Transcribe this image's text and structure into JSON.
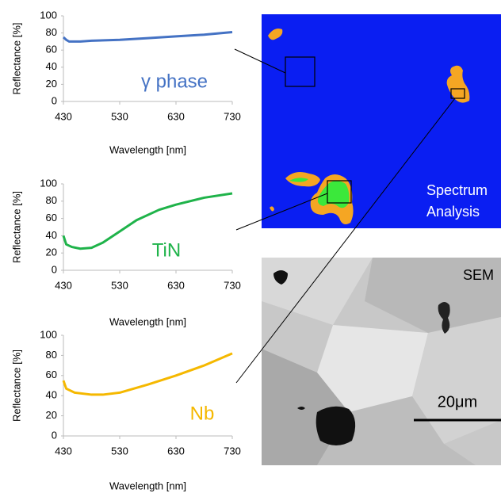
{
  "chart_data": [
    {
      "type": "line",
      "x_label": "Wavelength [nm]",
      "y_label": "Reflectance [%]",
      "x": [
        430,
        435,
        440,
        460,
        480,
        530,
        580,
        630,
        680,
        730
      ],
      "series": [
        {
          "name": "γ phase",
          "color": "#4472c4",
          "values": [
            75,
            72,
            70,
            70,
            71,
            72,
            74,
            76,
            78,
            81
          ]
        }
      ],
      "xlim": [
        430,
        730
      ],
      "xticks": [
        430,
        530,
        630,
        730
      ],
      "ylim": [
        0,
        100
      ],
      "yticks": [
        0,
        20,
        40,
        60,
        80,
        100
      ]
    },
    {
      "type": "line",
      "x_label": "Wavelength [nm]",
      "y_label": "Reflectance [%]",
      "x": [
        430,
        435,
        445,
        460,
        480,
        500,
        530,
        560,
        600,
        630,
        680,
        730
      ],
      "series": [
        {
          "name": "TiN",
          "color": "#1fb34a",
          "values": [
            40,
            30,
            27,
            25,
            26,
            32,
            45,
            58,
            70,
            76,
            84,
            89
          ]
        }
      ],
      "xlim": [
        430,
        730
      ],
      "xticks": [
        430,
        530,
        630,
        730
      ],
      "ylim": [
        0,
        100
      ],
      "yticks": [
        0,
        20,
        40,
        60,
        80,
        100
      ]
    },
    {
      "type": "line",
      "x_label": "Wavelength [nm]",
      "y_label": "Reflectance [%]",
      "x": [
        430,
        435,
        450,
        480,
        500,
        530,
        580,
        630,
        680,
        730
      ],
      "series": [
        {
          "name": "Nb",
          "color": "#f5b800",
          "values": [
            55,
            47,
            43,
            41,
            41,
            43,
            51,
            60,
            70,
            82
          ]
        }
      ],
      "xlim": [
        430,
        730
      ],
      "xticks": [
        430,
        530,
        630,
        730
      ],
      "ylim": [
        0,
        100
      ],
      "yticks": [
        0,
        20,
        40,
        60,
        80,
        100
      ]
    }
  ],
  "images": {
    "map_label": [
      "Spectrum",
      "Analysis"
    ],
    "sem_label": "SEM",
    "scale_bar": "20μm"
  }
}
